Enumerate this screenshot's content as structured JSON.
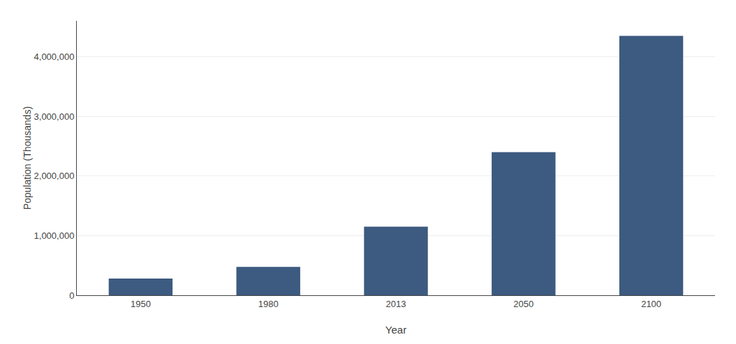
{
  "chart_data": {
    "type": "bar",
    "xlabel": "Year",
    "ylabel": "Population (Thousands)",
    "categories": [
      "1950",
      "1980",
      "2013",
      "2050",
      "2100"
    ],
    "values": [
      281000,
      475000,
      1150000,
      2400000,
      4350000
    ],
    "color": "#3D5A80",
    "ylim": [
      0,
      4600000
    ],
    "yticks": [
      0,
      {
        "value": 1000000,
        "label": "1,000,000"
      },
      {
        "value": 2000000,
        "label": "2,000,000"
      },
      {
        "value": 3000000,
        "label": "3,000,000"
      },
      {
        "value": 4000000,
        "label": "4,000,000"
      }
    ],
    "grid": true
  }
}
